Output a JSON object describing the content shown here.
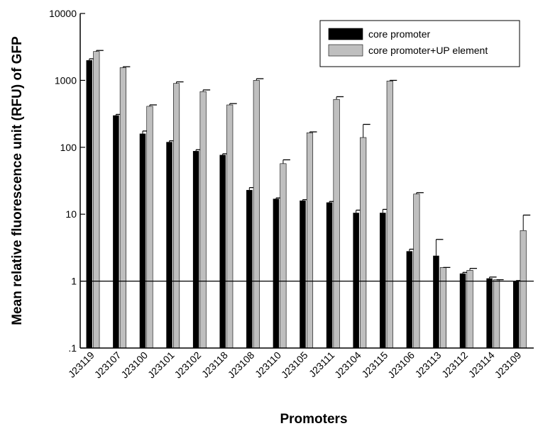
{
  "chart_data": {
    "type": "bar",
    "title": "",
    "xlabel": "Promoters",
    "ylabel": "Mean relative fluorescence unit (RFU) of GFP",
    "yscale": "log",
    "ylim": [
      0.1,
      10000
    ],
    "yticks": [
      0.1,
      1,
      10,
      100,
      1000,
      10000
    ],
    "ytick_labels": [
      ".1",
      "1",
      "10",
      "100",
      "1000",
      "10000"
    ],
    "reference_line": 1,
    "grid": false,
    "legend_position": "top-right",
    "categories": [
      "J23119",
      "J23107",
      "J23100",
      "J23101",
      "J23102",
      "J23118",
      "J23108",
      "J23110",
      "J23105",
      "J23111",
      "J23104",
      "J23115",
      "J23106",
      "J23113",
      "J23112",
      "J23114",
      "J23109"
    ],
    "series": [
      {
        "name": "core promoter",
        "color": "#000000",
        "values": [
          2000,
          300,
          160,
          120,
          88,
          77,
          23,
          17,
          16,
          15,
          10.5,
          10.5,
          2.8,
          2.4,
          1.3,
          1.1,
          1.0
        ],
        "error_upper": [
          2100,
          310,
          175,
          125,
          92,
          80,
          25,
          17.5,
          16.5,
          15.5,
          11.5,
          11.8,
          3.0,
          4.2,
          1.35,
          1.15,
          1.02
        ]
      },
      {
        "name": "core promoter+UP element",
        "color": "#bfbfbf",
        "values": [
          2700,
          1550,
          410,
          900,
          680,
          430,
          1000,
          57,
          165,
          520,
          140,
          980,
          20,
          1.6,
          1.45,
          1.05,
          5.7
        ],
        "error_upper": [
          2800,
          1600,
          430,
          950,
          720,
          450,
          1060,
          65,
          170,
          570,
          220,
          1000,
          21,
          1.6,
          1.55,
          1.05,
          9.7
        ]
      }
    ]
  }
}
